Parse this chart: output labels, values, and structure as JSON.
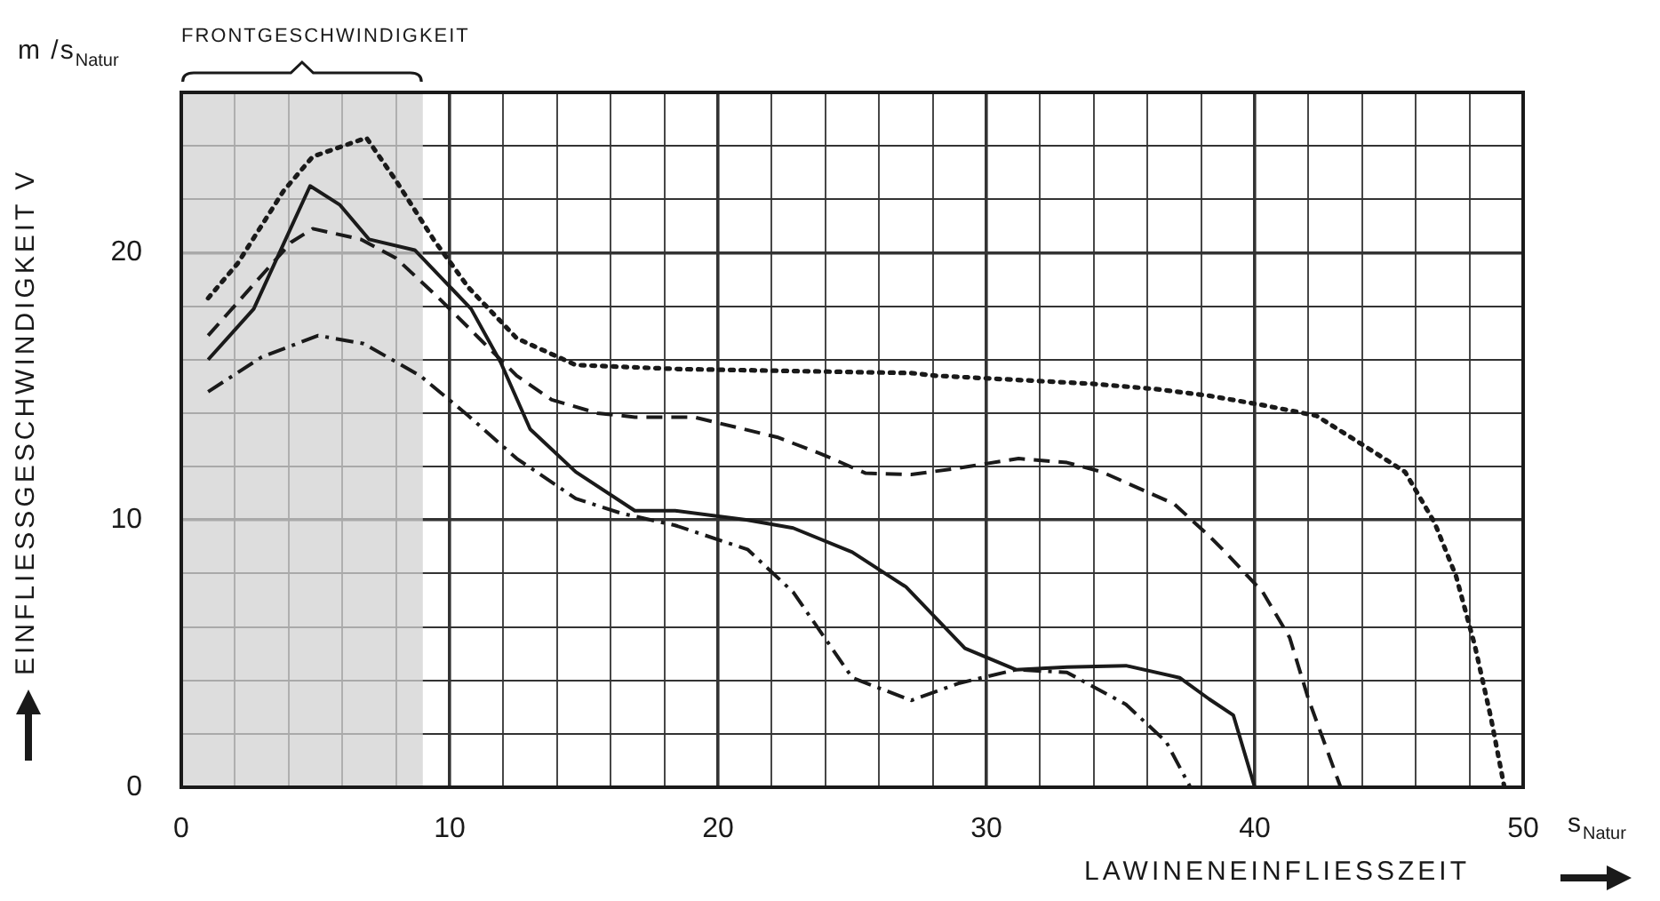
{
  "chart_data": {
    "type": "line",
    "xlabel": "LAWINENEINFLIESSZEIT",
    "ylabel": "EINFLIESSGESCHWINDIGKEIT V",
    "annotations": [
      "m /s$_{Natur}$",
      "s$_{Natur}$"
    ],
    "xlim": [
      0,
      50
    ],
    "ylim": [
      0,
      26
    ],
    "xticks": [
      0,
      {
        "value": 2,
        "label": null
      },
      {
        "value": 4,
        "label": null
      },
      {
        "value": 6,
        "label": null
      },
      {
        "value": 8,
        "label": null
      },
      10,
      {
        "value": 12,
        "label": null
      },
      {
        "value": 14,
        "label": null
      },
      {
        "value": 16,
        "label": null
      },
      {
        "value": 18,
        "label": null
      },
      20,
      {
        "value": 22,
        "label": null
      },
      {
        "value": 24,
        "label": null
      },
      {
        "value": 26,
        "label": null
      },
      {
        "value": 28,
        "label": null
      },
      30,
      {
        "value": 32,
        "label": null
      },
      {
        "value": 34,
        "label": null
      },
      {
        "value": 36,
        "label": null
      },
      {
        "value": 38,
        "label": null
      },
      40,
      {
        "value": 42,
        "label": null
      },
      {
        "value": 44,
        "label": null
      },
      {
        "value": 46,
        "label": null
      },
      {
        "value": 48,
        "label": null
      },
      50
    ],
    "yticks": [
      0,
      {
        "value": 2,
        "label": null
      },
      {
        "value": 4,
        "label": null
      },
      {
        "value": 6,
        "label": null
      },
      {
        "value": 8,
        "label": null
      },
      10,
      {
        "value": 12,
        "label": null
      },
      {
        "value": 14,
        "label": null
      },
      {
        "value": 16,
        "label": null
      },
      {
        "value": 18,
        "label": null
      },
      20,
      {
        "value": 22,
        "label": null
      },
      {
        "value": 24,
        "label": null
      }
    ],
    "grid": true,
    "legend": false,
    "marker": "none",
    "bands": [
      {
        "axis": "x",
        "from": 0,
        "to": 9,
        "label": "FRONTGESCHWINDIGKEIT",
        "color": "#d2d2d2"
      }
    ],
    "series": [
      {
        "color": "#1a1a1a",
        "line_style": "solid",
        "x": [
          1.0,
          2.7,
          4.8,
          5.9,
          7.0,
          8.7,
          10.8,
          11.9,
          13.0,
          14.7,
          16.9,
          18.4,
          21.1,
          22.8,
          25.0,
          27.0,
          29.2,
          31.1,
          33.0,
          35.2,
          37.2,
          38.3,
          39.2,
          40.0
        ],
        "values": [
          16.0,
          17.9,
          22.5,
          21.8,
          20.5,
          20.1,
          17.9,
          15.9,
          13.4,
          11.8,
          10.35,
          10.35,
          10.0,
          9.7,
          8.8,
          7.5,
          5.2,
          4.4,
          4.5,
          4.55,
          4.1,
          3.3,
          2.7,
          0
        ]
      },
      {
        "color": "#1a1a1a",
        "line_style": "dashed",
        "x": [
          1.0,
          4.1,
          4.9,
          6.7,
          8.0,
          9.6,
          11.1,
          12.5,
          13.8,
          15.5,
          16.9,
          19.1,
          22.2,
          23.9,
          25.5,
          27.2,
          29.0,
          31.2,
          33.0,
          34.3,
          37.0,
          38.3,
          38.9,
          40.3,
          41.3,
          42.0,
          43.2
        ],
        "values": [
          16.9,
          20.4,
          20.9,
          20.5,
          19.8,
          18.3,
          16.8,
          15.4,
          14.5,
          14.0,
          13.85,
          13.85,
          13.1,
          12.45,
          11.75,
          11.7,
          11.95,
          12.3,
          12.15,
          11.8,
          10.6,
          9.4,
          8.8,
          7.3,
          5.6,
          3.3,
          0
        ]
      },
      {
        "color": "#1a1a1a",
        "line_style": "dotted",
        "x": [
          1.0,
          2.1,
          3.8,
          4.9,
          6.9,
          8.0,
          9.4,
          10.7,
          12.5,
          14.7,
          18.5,
          27.2,
          28.1,
          33.9,
          36.3,
          38.3,
          40.3,
          42.3,
          44.2,
          45.6,
          46.7,
          47.5,
          48.2,
          48.8,
          49.3
        ],
        "values": [
          18.3,
          19.6,
          22.3,
          23.6,
          24.3,
          22.7,
          20.5,
          18.7,
          16.8,
          15.8,
          15.65,
          15.5,
          15.4,
          15.1,
          14.9,
          14.65,
          14.3,
          13.9,
          12.7,
          11.8,
          9.9,
          7.9,
          5.3,
          2.6,
          0
        ]
      },
      {
        "color": "#1a1a1a",
        "line_style": "dashdot",
        "x": [
          1.0,
          3.0,
          5.1,
          6.8,
          8.9,
          10.7,
          12.5,
          14.7,
          16.4,
          18.4,
          21.1,
          22.8,
          25.0,
          27.2,
          29.0,
          31.1,
          33.0,
          35.2,
          36.7,
          37.6
        ],
        "values": [
          14.8,
          16.1,
          16.9,
          16.6,
          15.4,
          13.9,
          12.3,
          10.8,
          10.25,
          9.8,
          8.9,
          7.3,
          4.1,
          3.25,
          3.9,
          4.4,
          4.3,
          3.1,
          1.7,
          0
        ]
      }
    ]
  }
}
